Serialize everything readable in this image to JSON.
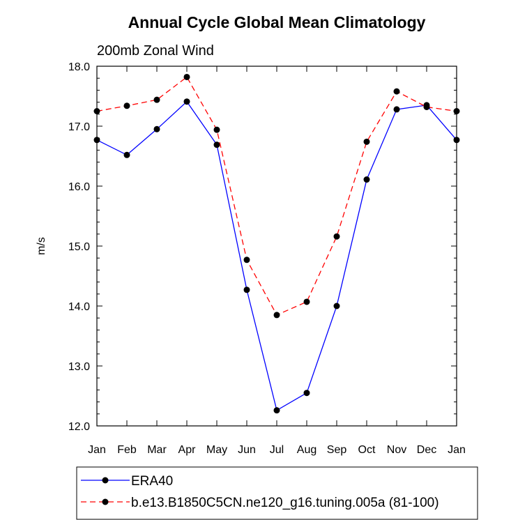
{
  "chart_data": {
    "type": "line",
    "title": "Annual Cycle Global Mean Climatology",
    "subtitle": "200mb Zonal Wind",
    "xlabel": "",
    "ylabel": "m/s",
    "categories": [
      "Jan",
      "Feb",
      "Mar",
      "Apr",
      "May",
      "Jun",
      "Jul",
      "Aug",
      "Sep",
      "Oct",
      "Nov",
      "Dec",
      "Jan"
    ],
    "ylim": [
      12.0,
      18.0
    ],
    "y_ticks": [
      12.0,
      13.0,
      14.0,
      15.0,
      16.0,
      17.0,
      18.0
    ],
    "y_tick_labels": [
      "12.0",
      "13.0",
      "14.0",
      "15.0",
      "16.0",
      "17.0",
      "18.0"
    ],
    "grid": false,
    "legend_position": "bottom",
    "series": [
      {
        "name": "ERA40",
        "color": "#0000ff",
        "dash": "solid",
        "values": [
          16.77,
          16.52,
          16.95,
          17.41,
          16.69,
          14.27,
          12.26,
          12.55,
          14.0,
          16.11,
          17.28,
          17.35,
          16.77
        ]
      },
      {
        "name": "b.e13.B1850C5CN.ne120_g16.tuning.005a (81-100)",
        "color": "#ff0000",
        "dash": "dashed",
        "values": [
          17.25,
          17.34,
          17.44,
          17.82,
          16.94,
          14.77,
          13.85,
          14.07,
          15.16,
          16.74,
          17.58,
          17.32,
          17.25
        ]
      }
    ]
  }
}
